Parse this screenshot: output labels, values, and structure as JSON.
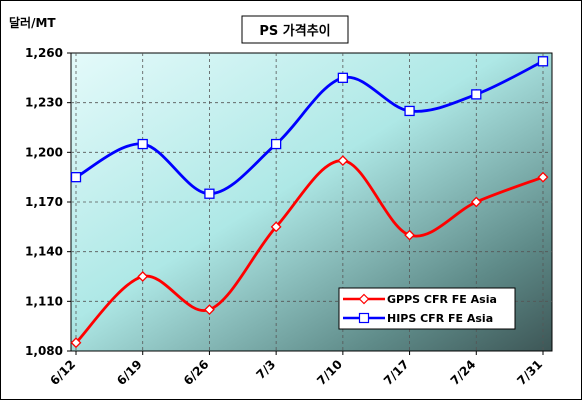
{
  "chart_data": {
    "type": "line",
    "title": "PS 가격추이",
    "ylabel": "달러/MT",
    "xlabel": "",
    "categories": [
      "6/12",
      "6/19",
      "6/26",
      "7/3",
      "7/10",
      "7/17",
      "7/24",
      "7/31"
    ],
    "ylim": [
      1080,
      1260
    ],
    "yticks": [
      1080,
      1110,
      1140,
      1170,
      1200,
      1230,
      1260
    ],
    "ytick_labels": [
      "1,080",
      "1,110",
      "1,140",
      "1,170",
      "1,200",
      "1,230",
      "1,260"
    ],
    "grid": true,
    "legend_position": "bottom-right",
    "series": [
      {
        "name": "GPPS CFR FE Asia",
        "color": "#ff0000",
        "marker": "diamond",
        "values": [
          1085,
          1125,
          1105,
          1155,
          1195,
          1150,
          1170,
          1185
        ]
      },
      {
        "name": "HIPS CFR FE Asia",
        "color": "#0000ff",
        "marker": "square",
        "values": [
          1185,
          1205,
          1175,
          1205,
          1245,
          1225,
          1235,
          1255
        ]
      }
    ]
  }
}
